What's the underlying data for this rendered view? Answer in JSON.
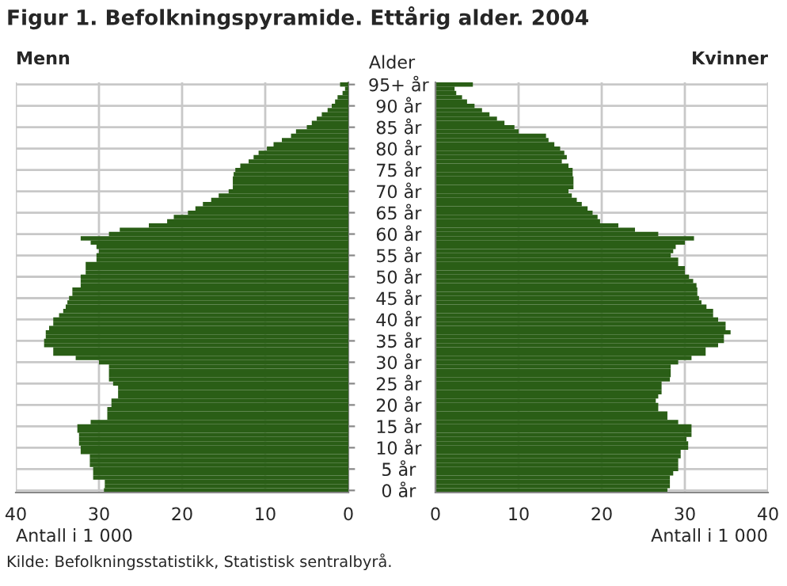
{
  "chart_data": [
    {
      "type": "bar",
      "orientation": "horizontal",
      "title": "Figur 1. Befolkningspyramide. Ettårig alder. 2004",
      "xlabel": "Antall i 1 000",
      "ylabel": "Alder",
      "annotations": [
        "Kilde: Befolkningsstatistikk, Statistisk sentralbyrå."
      ],
      "categories": [
        "95+ år",
        null,
        null,
        null,
        null,
        "90 år",
        null,
        null,
        null,
        null,
        "85 år",
        null,
        null,
        null,
        null,
        "80 år",
        null,
        null,
        null,
        null,
        "75 år",
        null,
        null,
        null,
        null,
        "70 år",
        null,
        null,
        null,
        null,
        "65 år",
        null,
        null,
        null,
        null,
        "60 år",
        null,
        null,
        null,
        null,
        "55 år",
        null,
        null,
        null,
        null,
        "50 år",
        null,
        null,
        null,
        null,
        "45 år",
        null,
        null,
        null,
        null,
        "40 år",
        null,
        null,
        null,
        null,
        "35 år",
        null,
        null,
        null,
        null,
        "30 år",
        null,
        null,
        null,
        null,
        "25 år",
        null,
        null,
        null,
        null,
        "20 år",
        null,
        null,
        null,
        null,
        "15 år",
        null,
        null,
        null,
        null,
        "10 år",
        null,
        null,
        null,
        null,
        "5 år",
        null,
        null,
        null,
        null,
        "0 år"
      ],
      "series": [
        {
          "name": "Menn",
          "color": "#2a5e16",
          "values": [
            1,
            0.4,
            0.7,
            1.3,
            1.6,
            2,
            2.5,
            3.2,
            3.8,
            4.4,
            5,
            6.3,
            6.9,
            8,
            9,
            9.8,
            10.8,
            11.4,
            12,
            13,
            13.6,
            13.8,
            13.9,
            13.9,
            13.9,
            14.4,
            15.6,
            16.5,
            17.5,
            18.4,
            19.3,
            21,
            21.8,
            24,
            27.5,
            28.8,
            32.2,
            31,
            30.3,
            30,
            30.3,
            30.3,
            31.6,
            31.6,
            31.6,
            32.2,
            32.2,
            32.2,
            33.2,
            33.2,
            33.6,
            33.8,
            34,
            34.3,
            34.8,
            35.5,
            35.5,
            36,
            36.4,
            36.4,
            36.6,
            36.6,
            35.5,
            35.5,
            32.8,
            30,
            28.8,
            28.8,
            28.8,
            28.8,
            28.3,
            27.7,
            27.7,
            27.7,
            28.5,
            28.5,
            29,
            29,
            29,
            31,
            32.6,
            32.6,
            32.4,
            32.4,
            32.4,
            32.2,
            32.2,
            31.1,
            31.1,
            31.1,
            30.7,
            30.7,
            30.7,
            29.3,
            29.3,
            29.4
          ]
        }
      ],
      "xlim": [
        40,
        0
      ],
      "xticks": [
        40,
        30,
        20,
        10,
        0
      ],
      "grid": true
    },
    {
      "type": "bar",
      "orientation": "horizontal",
      "xlabel": "Antall i 1 000",
      "tick_labels": "x",
      "categories": [
        null,
        null,
        null,
        null,
        null,
        null,
        null,
        null,
        null,
        null,
        null,
        null,
        null,
        null,
        null,
        null,
        null,
        null,
        null,
        null,
        null,
        null,
        null,
        null,
        null,
        null,
        null,
        null,
        null,
        null,
        null,
        null,
        null,
        null,
        null,
        null,
        null,
        null,
        null,
        null,
        null,
        null,
        null,
        null,
        null,
        null,
        null,
        null,
        null,
        null,
        null,
        null,
        null,
        null,
        null,
        null,
        null,
        null,
        null,
        null,
        null,
        null,
        null,
        null,
        null,
        null,
        null,
        null,
        null,
        null,
        null,
        null,
        null,
        null,
        null,
        null,
        null,
        null,
        null,
        null,
        null,
        null,
        null,
        null,
        null,
        null,
        null,
        null,
        null,
        null,
        null,
        null,
        null,
        null,
        null,
        null
      ],
      "series": [
        {
          "name": "Kvinner",
          "color": "#2a5e16",
          "values": [
            4.5,
            2.3,
            2.5,
            3.2,
            3.8,
            4.7,
            5.6,
            6.5,
            7.4,
            8.3,
            9.5,
            10,
            13.3,
            13.6,
            14.3,
            15,
            15.5,
            15.8,
            15.2,
            16,
            16.5,
            16.5,
            16.6,
            16.6,
            16.6,
            16,
            16.4,
            17,
            17.6,
            18.3,
            18.9,
            19.5,
            19.8,
            22,
            24,
            26.8,
            31.1,
            30,
            28.9,
            28.6,
            28.3,
            29.2,
            29.2,
            30,
            30,
            30.5,
            31,
            31.4,
            31.5,
            31.5,
            31.7,
            32,
            32.6,
            33.4,
            33.4,
            34,
            34.9,
            34.9,
            35.5,
            34.7,
            34.7,
            34,
            32.5,
            32.5,
            30.8,
            29.2,
            28.3,
            28.3,
            28.3,
            28.2,
            27.2,
            27.2,
            27.2,
            26.8,
            26.5,
            26.8,
            26.8,
            27.9,
            27.9,
            29.2,
            30.8,
            30.8,
            30.8,
            30.2,
            30.4,
            30.4,
            29.5,
            29.5,
            29.2,
            29.2,
            29.2,
            28.6,
            28.2,
            28.2,
            28.2,
            27.9
          ]
        }
      ],
      "xlim": [
        0,
        40
      ],
      "xticks": [
        0,
        10,
        20,
        30,
        40
      ],
      "grid": true
    }
  ]
}
